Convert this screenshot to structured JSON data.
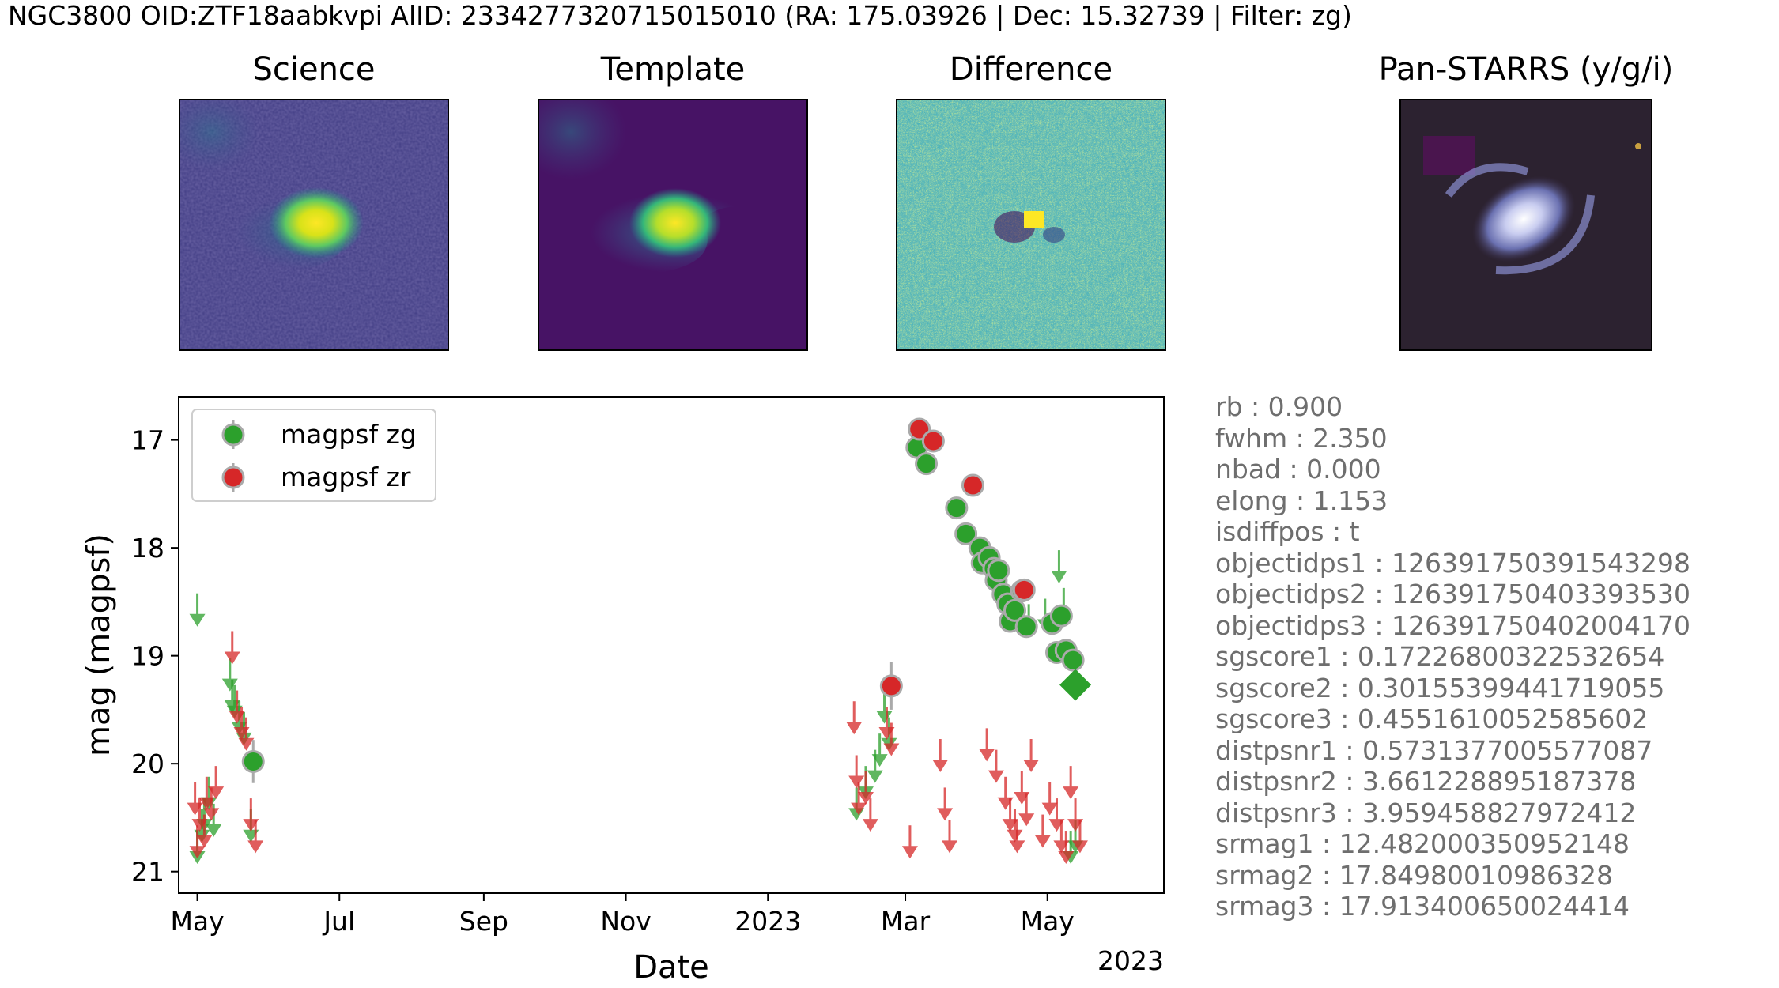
{
  "header": {
    "suptitle": "NGC3800 OID:ZTF18aabkvpi AlID: 2334277320715015010 (RA: 175.03926 | Dec: 15.32739 | Filter: zg)"
  },
  "stamps": [
    {
      "title": "Science"
    },
    {
      "title": "Template"
    },
    {
      "title": "Difference"
    },
    {
      "title": "Pan-STARRS (y/g/i)"
    }
  ],
  "metadata": [
    "rb : 0.900",
    "fwhm : 2.350",
    "nbad : 0.000",
    "elong : 1.153",
    "isdiffpos : t",
    "objectidps1 : 126391750391543298",
    "objectidps2 : 126391750403393530",
    "objectidps3 : 126391750402004170",
    "sgscore1 : 0.17226800322532654",
    "sgscore2 : 0.30155399441719055",
    "sgscore3 : 0.4551610052585602",
    "distpsnr1 : 0.5731377005577087",
    "distpsnr2 : 3.661228895187378",
    "distpsnr3 : 3.959458827972412",
    "srmag1 : 12.482000350952148",
    "srmag2 : 17.84980010986328",
    "srmag3 : 17.913400650024414"
  ],
  "colors": {
    "zg": "#2ca02c",
    "zr": "#d62728",
    "errorbar": "#aaaaaa"
  },
  "chart_data": {
    "type": "scatter",
    "xlabel": "Date",
    "ylabel": "mag (magpsf)",
    "x_units": "days since 2022-01-01",
    "xlim": [
      112,
      535
    ],
    "ylim": [
      21.2,
      16.6
    ],
    "y_inverted": true,
    "grid": false,
    "legend_position": "top-left",
    "x_ticks": [
      {
        "value": 120,
        "label": "May"
      },
      {
        "value": 181,
        "label": "Jul"
      },
      {
        "value": 243,
        "label": "Sep"
      },
      {
        "value": 304,
        "label": "Nov"
      },
      {
        "value": 365,
        "label": "2023"
      },
      {
        "value": 424,
        "label": "Mar"
      },
      {
        "value": 485,
        "label": "May"
      }
    ],
    "x_offset_label": "2023",
    "y_ticks": [
      17,
      18,
      19,
      20,
      21
    ],
    "series": [
      {
        "name": "magpsf zg",
        "filter": "zg",
        "detections": [
          {
            "x": 144,
            "y": 19.98,
            "err": 0.2
          },
          {
            "x": 429,
            "y": 17.07,
            "err": 0.05
          },
          {
            "x": 433,
            "y": 17.22,
            "err": 0.05
          },
          {
            "x": 446,
            "y": 17.63,
            "err": 0.06
          },
          {
            "x": 450,
            "y": 17.87,
            "err": 0.06
          },
          {
            "x": 456,
            "y": 18.0,
            "err": 0.06
          },
          {
            "x": 457,
            "y": 18.14,
            "err": 0.06
          },
          {
            "x": 460,
            "y": 18.09,
            "err": 0.06
          },
          {
            "x": 462,
            "y": 18.19,
            "err": 0.06
          },
          {
            "x": 463,
            "y": 18.3,
            "err": 0.07
          },
          {
            "x": 464,
            "y": 18.21,
            "err": 0.07
          },
          {
            "x": 466,
            "y": 18.43,
            "err": 0.08
          },
          {
            "x": 468,
            "y": 18.52,
            "err": 0.08
          },
          {
            "x": 469,
            "y": 18.68,
            "err": 0.09
          },
          {
            "x": 471,
            "y": 18.58,
            "err": 0.09
          },
          {
            "x": 474,
            "y": 18.4,
            "err": 0.09
          },
          {
            "x": 476,
            "y": 18.73,
            "err": 0.1
          },
          {
            "x": 487,
            "y": 18.7,
            "err": 0.1
          },
          {
            "x": 491,
            "y": 18.63,
            "err": 0.1
          },
          {
            "x": 489,
            "y": 18.97,
            "err": 0.1
          },
          {
            "x": 493,
            "y": 18.95,
            "err": 0.1
          },
          {
            "x": 496,
            "y": 19.04,
            "err": 0.1
          }
        ],
        "upper_limits": [
          {
            "x": 120,
            "y": 18.7
          },
          {
            "x": 120,
            "y": 20.9
          },
          {
            "x": 122,
            "y": 20.7
          },
          {
            "x": 123,
            "y": 20.6
          },
          {
            "x": 125,
            "y": 20.4
          },
          {
            "x": 127,
            "y": 20.65
          },
          {
            "x": 134,
            "y": 19.3
          },
          {
            "x": 135,
            "y": 19.5
          },
          {
            "x": 136,
            "y": 19.55
          },
          {
            "x": 138,
            "y": 19.7
          },
          {
            "x": 140,
            "y": 19.8
          },
          {
            "x": 143,
            "y": 20.7
          },
          {
            "x": 403,
            "y": 20.5
          },
          {
            "x": 407,
            "y": 20.3
          },
          {
            "x": 411,
            "y": 20.15
          },
          {
            "x": 413,
            "y": 20.0
          },
          {
            "x": 415,
            "y": 19.6
          },
          {
            "x": 417,
            "y": 19.85
          },
          {
            "x": 477,
            "y": 18.8
          },
          {
            "x": 484,
            "y": 18.75
          },
          {
            "x": 490,
            "y": 18.3
          },
          {
            "x": 492,
            "y": 18.65
          },
          {
            "x": 495,
            "y": 20.9
          },
          {
            "x": 497,
            "y": 20.8
          }
        ],
        "last_detection": {
          "x": 497,
          "y": 19.27,
          "marker": "diamond"
        }
      },
      {
        "name": "magpsf zr",
        "filter": "zr",
        "detections": [
          {
            "x": 418,
            "y": 19.28,
            "err": 0.22
          },
          {
            "x": 430,
            "y": 16.9,
            "err": 0.05
          },
          {
            "x": 436,
            "y": 17.01,
            "err": 0.05
          },
          {
            "x": 453,
            "y": 17.42,
            "err": 0.06
          },
          {
            "x": 475,
            "y": 18.39,
            "err": 0.08
          }
        ],
        "upper_limits": [
          {
            "x": 119,
            "y": 20.45
          },
          {
            "x": 120,
            "y": 20.85
          },
          {
            "x": 121,
            "y": 20.6
          },
          {
            "x": 123,
            "y": 20.75
          },
          {
            "x": 124,
            "y": 20.4
          },
          {
            "x": 126,
            "y": 20.5
          },
          {
            "x": 128,
            "y": 20.3
          },
          {
            "x": 135,
            "y": 19.05
          },
          {
            "x": 137,
            "y": 19.6
          },
          {
            "x": 139,
            "y": 19.75
          },
          {
            "x": 143,
            "y": 20.6
          },
          {
            "x": 145,
            "y": 20.8
          },
          {
            "x": 141,
            "y": 19.85
          },
          {
            "x": 402,
            "y": 19.7
          },
          {
            "x": 403,
            "y": 20.2
          },
          {
            "x": 404,
            "y": 20.45
          },
          {
            "x": 407,
            "y": 20.35
          },
          {
            "x": 409,
            "y": 20.6
          },
          {
            "x": 416,
            "y": 19.75
          },
          {
            "x": 418,
            "y": 19.9
          },
          {
            "x": 426,
            "y": 20.85
          },
          {
            "x": 439,
            "y": 20.05
          },
          {
            "x": 441,
            "y": 20.5
          },
          {
            "x": 443,
            "y": 20.8
          },
          {
            "x": 459,
            "y": 19.95
          },
          {
            "x": 463,
            "y": 20.15
          },
          {
            "x": 467,
            "y": 20.4
          },
          {
            "x": 469,
            "y": 20.6
          },
          {
            "x": 471,
            "y": 20.7
          },
          {
            "x": 472,
            "y": 20.8
          },
          {
            "x": 474,
            "y": 20.35
          },
          {
            "x": 476,
            "y": 20.55
          },
          {
            "x": 478,
            "y": 20.05
          },
          {
            "x": 483,
            "y": 20.75
          },
          {
            "x": 486,
            "y": 20.45
          },
          {
            "x": 489,
            "y": 20.6
          },
          {
            "x": 491,
            "y": 20.8
          },
          {
            "x": 493,
            "y": 20.9
          },
          {
            "x": 495,
            "y": 20.3
          },
          {
            "x": 497,
            "y": 20.6
          },
          {
            "x": 499,
            "y": 20.8
          }
        ]
      }
    ]
  }
}
